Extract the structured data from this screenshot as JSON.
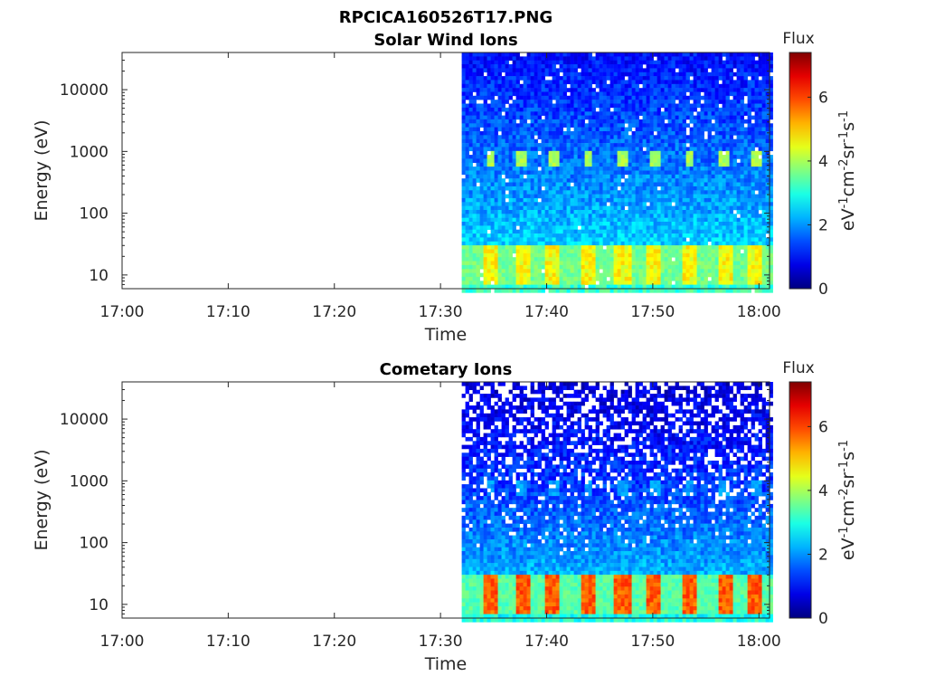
{
  "figure_title": "RPCICA160526T17.PNG",
  "chart_data": [
    {
      "type": "heatmap",
      "title": "Solar Wind Ions",
      "xlabel": "Time",
      "ylabel": "Energy (eV)",
      "x_ticks": [
        "17:00",
        "17:10",
        "17:20",
        "17:30",
        "17:40",
        "17:50",
        "18:00"
      ],
      "xlim": [
        "17:00",
        "18:01"
      ],
      "y_ticks": [
        "10",
        "100",
        "1000",
        "10000"
      ],
      "ylim": [
        6,
        40000
      ],
      "yscale": "log",
      "data_start": "17:32",
      "data_end": "18:01",
      "colorbar": {
        "title": "Flux",
        "label_parts": [
          "eV",
          "-1",
          "cm",
          "-2",
          "sr",
          "-1",
          "s",
          "-1"
        ],
        "ticks": [
          "0",
          "2",
          "4",
          "6"
        ],
        "range": [
          0,
          7.4
        ],
        "colormap": "jet"
      },
      "features": {
        "background_level_low_energy": 3.2,
        "background_level_high_energy": 1.0,
        "low_energy_bursts_level": 4.6,
        "mid_energy_spots_level": 3.9,
        "mid_energy_spots_energy_eV": 800
      }
    },
    {
      "type": "heatmap",
      "title": "Cometary Ions",
      "xlabel": "Time",
      "ylabel": "Energy (eV)",
      "x_ticks": [
        "17:00",
        "17:10",
        "17:20",
        "17:30",
        "17:40",
        "17:50",
        "18:00"
      ],
      "xlim": [
        "17:00",
        "18:01"
      ],
      "y_ticks": [
        "10",
        "100",
        "1000",
        "10000"
      ],
      "ylim": [
        6,
        40000
      ],
      "yscale": "log",
      "data_start": "17:32",
      "data_end": "18:01",
      "colorbar": {
        "title": "Flux",
        "label_parts": [
          "eV",
          "-1",
          "cm",
          "-2",
          "sr",
          "-1",
          "s",
          "-1"
        ],
        "ticks": [
          "0",
          "2",
          "4",
          "6"
        ],
        "range": [
          0,
          7.4
        ],
        "colormap": "jet"
      },
      "features": {
        "background_level_low_energy": 3.0,
        "background_level_high_energy": 0.6,
        "low_energy_bursts_level": 5.8,
        "mid_energy_spots_level": 2.0,
        "mid_energy_spots_energy_eV": 800
      }
    }
  ],
  "burst_times": [
    "17:34.5",
    "17:37.5",
    "17:40.5",
    "17:43.8",
    "17:47",
    "17:50",
    "17:53.3",
    "17:56.6",
    "17:59.5"
  ]
}
